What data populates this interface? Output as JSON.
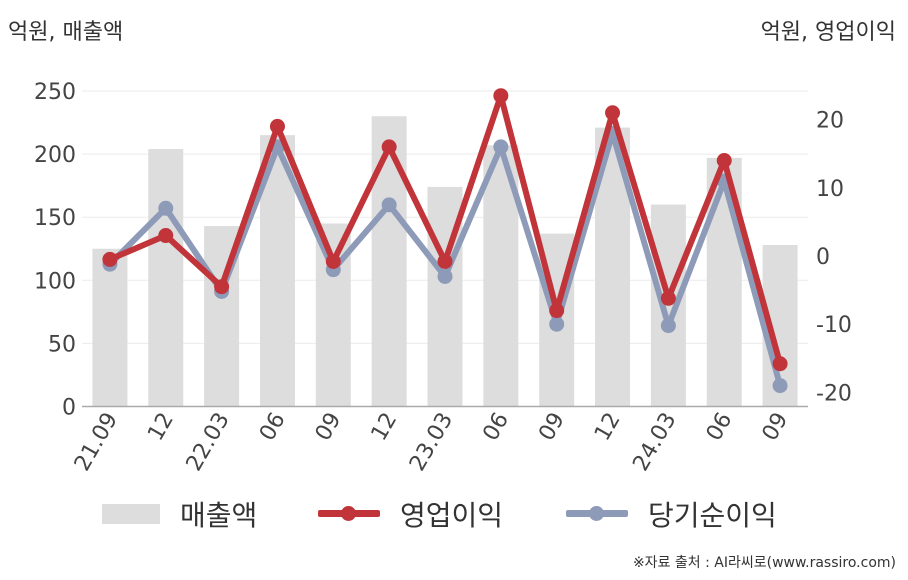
{
  "header": {
    "left_unit": "억원, 매출액",
    "right_unit": "억원, 영업이익"
  },
  "source": "※자료 출처 : AI라씨로(www.rassiro.com)",
  "colors": {
    "bar": "#dddddd",
    "operating_profit": "#c0343a",
    "net_income": "#8e9bb8"
  },
  "chart_data": {
    "type": "bar",
    "categories": [
      "21.09",
      "12",
      "22.03",
      "06",
      "09",
      "12",
      "23.03",
      "06",
      "09",
      "12",
      "24.03",
      "06",
      "09"
    ],
    "series": [
      {
        "name": "매출액",
        "type": "bar",
        "axis": "left",
        "values": [
          125,
          204,
          143,
          215,
          145,
          230,
          174,
          207,
          137,
          221,
          160,
          197,
          128
        ]
      },
      {
        "name": "영업이익",
        "type": "line",
        "axis": "right",
        "values": [
          -0.5,
          3,
          -4.5,
          19,
          -0.8,
          16,
          -0.8,
          23.5,
          -8,
          21,
          -6.2,
          14,
          -15.8
        ]
      },
      {
        "name": "당기순이익",
        "type": "line",
        "axis": "right",
        "values": [
          -1.2,
          7,
          -5.2,
          16,
          -2,
          7.5,
          -3,
          16,
          -10,
          18,
          -10.2,
          11,
          -19
        ]
      }
    ],
    "left_axis": {
      "ylim": [
        0,
        250
      ],
      "ticks": [
        "0",
        "50",
        "100",
        "150",
        "200",
        "250"
      ]
    },
    "right_axis": {
      "ylim": [
        -22,
        25
      ],
      "ticks": [
        "-20",
        "-10",
        "0",
        "10",
        "20"
      ]
    },
    "grid": true,
    "legend": {
      "position": "bottom",
      "items": [
        "매출액",
        "영업이익",
        "당기순이익"
      ]
    }
  }
}
